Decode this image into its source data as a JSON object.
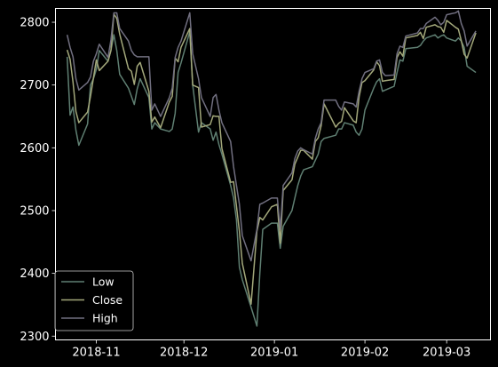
{
  "chart_data": {
    "type": "line",
    "title": "",
    "xlabel": "",
    "ylabel": "",
    "x_range": [
      "2018-10-18",
      "2019-03-16"
    ],
    "ylim": [
      2294,
      2822
    ],
    "x_ticks": [
      {
        "date": "2018-11-01",
        "label": "2018-11"
      },
      {
        "date": "2018-12-01",
        "label": "2018-12"
      },
      {
        "date": "2019-01-01",
        "label": "2019-01"
      },
      {
        "date": "2019-02-01",
        "label": "2019-02"
      },
      {
        "date": "2019-03-01",
        "label": "2019-03"
      }
    ],
    "y_ticks": [
      2300,
      2400,
      2500,
      2600,
      2700,
      2800
    ],
    "grid": false,
    "legend_position": "lower-left",
    "colors": {
      "background": "#000000",
      "axes": "#ffffff",
      "low": "#5f7f72",
      "close": "#a3a87b",
      "high": "#716f80"
    },
    "x": [
      "2018-10-22",
      "2018-10-23",
      "2018-10-24",
      "2018-10-25",
      "2018-10-26",
      "2018-10-29",
      "2018-10-30",
      "2018-10-31",
      "2018-11-01",
      "2018-11-02",
      "2018-11-05",
      "2018-11-06",
      "2018-11-07",
      "2018-11-08",
      "2018-11-09",
      "2018-11-12",
      "2018-11-13",
      "2018-11-14",
      "2018-11-15",
      "2018-11-16",
      "2018-11-19",
      "2018-11-20",
      "2018-11-21",
      "2018-11-23",
      "2018-11-26",
      "2018-11-27",
      "2018-11-28",
      "2018-11-29",
      "2018-11-30",
      "2018-12-03",
      "2018-12-04",
      "2018-12-06",
      "2018-12-07",
      "2018-12-10",
      "2018-12-11",
      "2018-12-12",
      "2018-12-13",
      "2018-12-14",
      "2018-12-17",
      "2018-12-18",
      "2018-12-19",
      "2018-12-20",
      "2018-12-21",
      "2018-12-24",
      "2018-12-26",
      "2018-12-27",
      "2018-12-28",
      "2018-12-31",
      "2019-01-02",
      "2019-01-03",
      "2019-01-04",
      "2019-01-07",
      "2019-01-08",
      "2019-01-09",
      "2019-01-10",
      "2019-01-11",
      "2019-01-14",
      "2019-01-15",
      "2019-01-16",
      "2019-01-17",
      "2019-01-18",
      "2019-01-22",
      "2019-01-23",
      "2019-01-24",
      "2019-01-25",
      "2019-01-28",
      "2019-01-29",
      "2019-01-30",
      "2019-01-31",
      "2019-02-01",
      "2019-02-04",
      "2019-02-05",
      "2019-02-06",
      "2019-02-07",
      "2019-02-08",
      "2019-02-11",
      "2019-02-12",
      "2019-02-13",
      "2019-02-14",
      "2019-02-15",
      "2019-02-19",
      "2019-02-20",
      "2019-02-21",
      "2019-02-22",
      "2019-02-25",
      "2019-02-26",
      "2019-02-27",
      "2019-02-28",
      "2019-03-01",
      "2019-03-04",
      "2019-03-05",
      "2019-03-06",
      "2019-03-07",
      "2019-03-08",
      "2019-03-11"
    ],
    "series": [
      {
        "name": "Low",
        "values": [
          2745,
          2652,
          2665,
          2628,
          2604,
          2638,
          2700,
          2710,
          2725,
          2755,
          2738,
          2755,
          2780,
          2755,
          2717,
          2695,
          2682,
          2669,
          2694,
          2710,
          2680,
          2630,
          2640,
          2630,
          2626,
          2630,
          2655,
          2720,
          2735,
          2785,
          2700,
          2625,
          2640,
          2630,
          2612,
          2625,
          2605,
          2590,
          2540,
          2520,
          2485,
          2410,
          2390,
          2346,
          2316,
          2400,
          2470,
          2480,
          2480,
          2440,
          2475,
          2500,
          2520,
          2540,
          2555,
          2565,
          2570,
          2580,
          2590,
          2610,
          2615,
          2620,
          2630,
          2630,
          2640,
          2636,
          2625,
          2620,
          2630,
          2660,
          2695,
          2705,
          2710,
          2690,
          2692,
          2698,
          2720,
          2740,
          2738,
          2758,
          2760,
          2763,
          2770,
          2775,
          2780,
          2775,
          2778,
          2780,
          2775,
          2770,
          2775,
          2770,
          2760,
          2730,
          2720
        ]
      },
      {
        "name": "Close",
        "values": [
          2756,
          2741,
          2705,
          2658,
          2640,
          2657,
          2682,
          2711,
          2740,
          2723,
          2738,
          2755,
          2813,
          2806,
          2781,
          2726,
          2722,
          2701,
          2730,
          2736,
          2690,
          2641,
          2649,
          2632,
          2673,
          2682,
          2743,
          2737,
          2760,
          2790,
          2700,
          2696,
          2633,
          2637,
          2651,
          2650,
          2650,
          2599,
          2545,
          2546,
          2507,
          2467,
          2416,
          2351,
          2467,
          2489,
          2485,
          2506,
          2510,
          2448,
          2532,
          2549,
          2574,
          2585,
          2596,
          2596,
          2582,
          2610,
          2616,
          2635,
          2670,
          2633,
          2639,
          2642,
          2664,
          2643,
          2640,
          2681,
          2704,
          2707,
          2724,
          2737,
          2731,
          2706,
          2707,
          2709,
          2744,
          2753,
          2746,
          2775,
          2779,
          2784,
          2774,
          2792,
          2796,
          2793,
          2792,
          2784,
          2803,
          2792,
          2789,
          2771,
          2749,
          2743,
          2783
        ]
      },
      {
        "name": "High",
        "values": [
          2780,
          2760,
          2745,
          2710,
          2692,
          2704,
          2713,
          2738,
          2750,
          2765,
          2744,
          2772,
          2815,
          2815,
          2790,
          2770,
          2755,
          2748,
          2745,
          2745,
          2745,
          2660,
          2670,
          2650,
          2680,
          2695,
          2744,
          2760,
          2770,
          2815,
          2750,
          2710,
          2680,
          2650,
          2680,
          2685,
          2660,
          2640,
          2610,
          2570,
          2540,
          2510,
          2460,
          2420,
          2470,
          2510,
          2512,
          2520,
          2520,
          2470,
          2540,
          2560,
          2583,
          2595,
          2600,
          2597,
          2590,
          2615,
          2630,
          2640,
          2676,
          2676,
          2666,
          2660,
          2673,
          2670,
          2665,
          2690,
          2710,
          2720,
          2726,
          2738,
          2740,
          2720,
          2715,
          2716,
          2750,
          2762,
          2760,
          2778,
          2783,
          2790,
          2790,
          2798,
          2808,
          2803,
          2796,
          2800,
          2812,
          2815,
          2818,
          2798,
          2786,
          2762,
          2786
        ]
      }
    ]
  }
}
